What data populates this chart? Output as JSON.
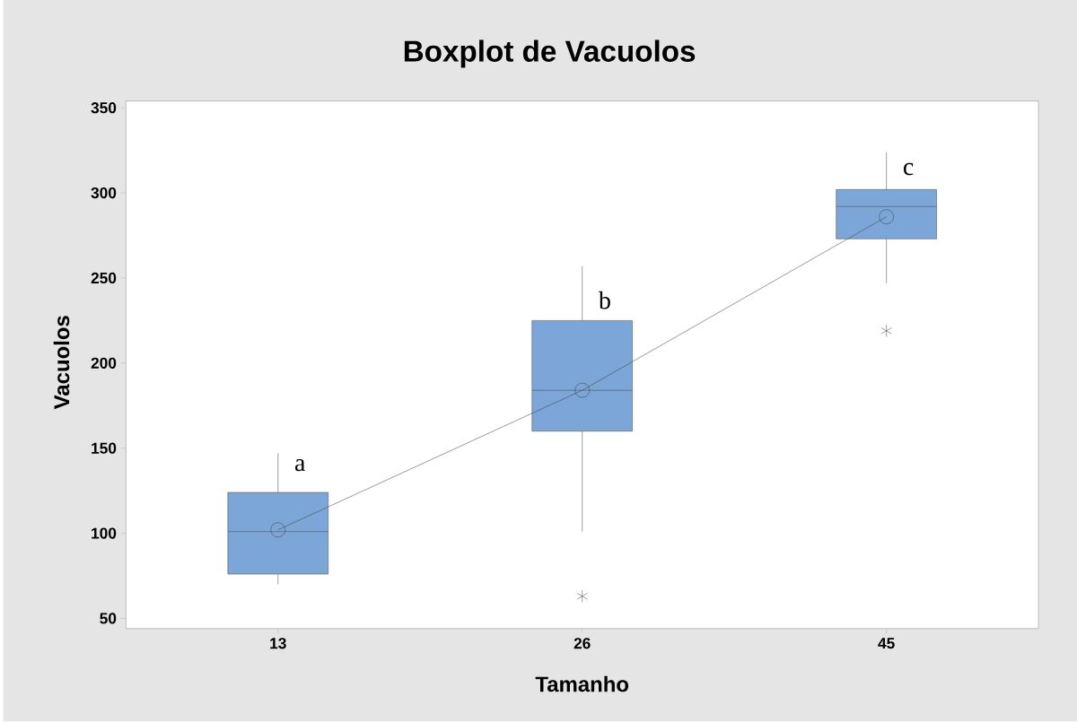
{
  "chart_data": {
    "type": "box",
    "title": "Boxplot de Vacuolos",
    "xlabel": "Tamanho",
    "ylabel": "Vacuolos",
    "categories": [
      "13",
      "26",
      "45"
    ],
    "ylim": [
      44,
      354
    ],
    "yticks": [
      50,
      100,
      150,
      200,
      250,
      300,
      350
    ],
    "color": "#7ca6d8",
    "boxes": [
      {
        "low": 70,
        "q1": 76,
        "median": 101,
        "q3": 124,
        "high": 147
      },
      {
        "low": 101,
        "q1": 160,
        "median": 184,
        "q3": 225,
        "high": 257,
        "outliers": [
          63
        ]
      },
      {
        "low": 247,
        "q1": 273,
        "median": 292,
        "q3": 302,
        "high": 324,
        "outliers": [
          219
        ]
      }
    ],
    "series": [
      {
        "type": "line",
        "values": [
          102,
          184,
          286
        ],
        "color": "#404040",
        "marker": "circle"
      }
    ],
    "annotations": [
      {
        "text": "a",
        "x": "13",
        "y": 140
      },
      {
        "text": "b",
        "x": "26",
        "y": 237
      },
      {
        "text": "c",
        "x": "45",
        "y": 314
      }
    ]
  }
}
